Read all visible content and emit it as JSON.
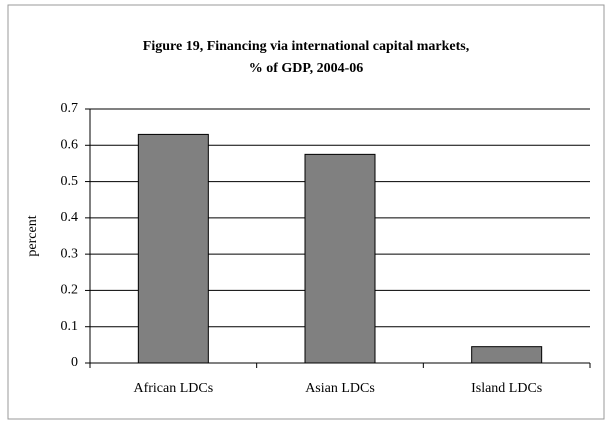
{
  "chart_data": {
    "type": "bar",
    "title": [
      "Figure 19, Financing via international capital markets,",
      "% of GDP, 2004-06"
    ],
    "y_label": "percent",
    "categories": [
      "African LDCs",
      "Asian LDCs",
      "Island LDCs"
    ],
    "values": [
      0.63,
      0.575,
      0.045
    ],
    "color": "#808080",
    "ylim": [
      0,
      0.7
    ],
    "yticks": [
      0,
      0.1,
      0.2,
      0.3,
      0.4,
      0.5,
      0.6,
      0.7
    ],
    "grid": true
  }
}
